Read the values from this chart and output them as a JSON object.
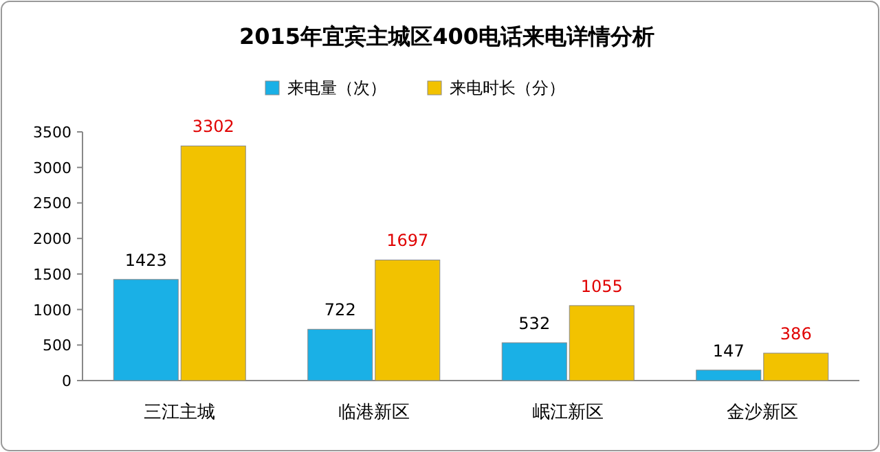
{
  "chart_data": {
    "type": "bar",
    "title": "2015年宜宾主城区400电话来电详情分析",
    "categories": [
      "三江主城",
      "临港新区",
      "岷江新区",
      "金沙新区"
    ],
    "series": [
      {
        "name": "来电量（次）",
        "color": "#1ab0e6",
        "values": [
          1423,
          722,
          532,
          147
        ]
      },
      {
        "name": "来电时长（分）",
        "color": "#f2c200",
        "values": [
          3302,
          1697,
          1055,
          386
        ]
      }
    ],
    "ylim": [
      0,
      3500
    ],
    "yticks": [
      0,
      500,
      1000,
      1500,
      2000,
      2500,
      3000,
      3500
    ],
    "grid": false,
    "legend": "top",
    "data_labels": true
  }
}
